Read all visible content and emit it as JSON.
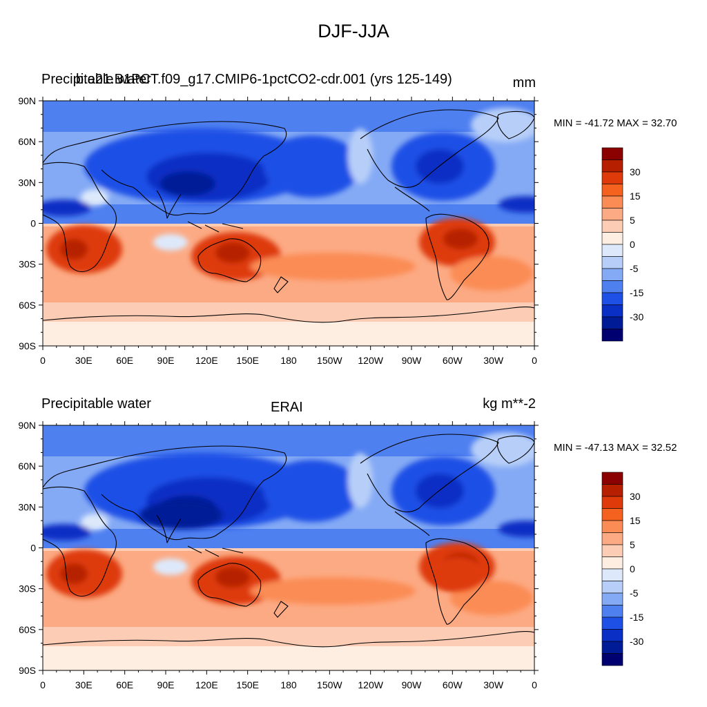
{
  "main_title": "DJF-JJA",
  "panels": [
    {
      "left_title": "Precipitable water",
      "center_title": "b.e21.B1PCT.f09_g17.CMIP6-1pctCO2-cdr.001 (yrs 125-149)",
      "units": "mm",
      "stats": "MIN = -41.72 MAX =  32.70"
    },
    {
      "left_title": "Precipitable water",
      "center_title": "ERAI",
      "units": "kg m**-2",
      "stats": "MIN = -47.13 MAX =  32.52"
    }
  ],
  "lat_labels": [
    "90N",
    "60N",
    "30N",
    "0",
    "30S",
    "60S",
    "90S"
  ],
  "lon_labels": [
    "0",
    "30E",
    "60E",
    "90E",
    "120E",
    "150E",
    "180",
    "150W",
    "120W",
    "90W",
    "60W",
    "30W",
    "0"
  ],
  "colorbar": {
    "labels": [
      "30",
      "15",
      "5",
      "0",
      "-5",
      "-15",
      "-30"
    ],
    "colors": [
      "#8b0000",
      "#b62000",
      "#de3a0a",
      "#f5611f",
      "#fb8c55",
      "#fcaa84",
      "#fcccb4",
      "#feeee2",
      "#dde9fb",
      "#b7cff8",
      "#85aaf5",
      "#4f80f0",
      "#1f50e6",
      "#0a2fc4",
      "#001b96",
      "#000070"
    ]
  }
}
